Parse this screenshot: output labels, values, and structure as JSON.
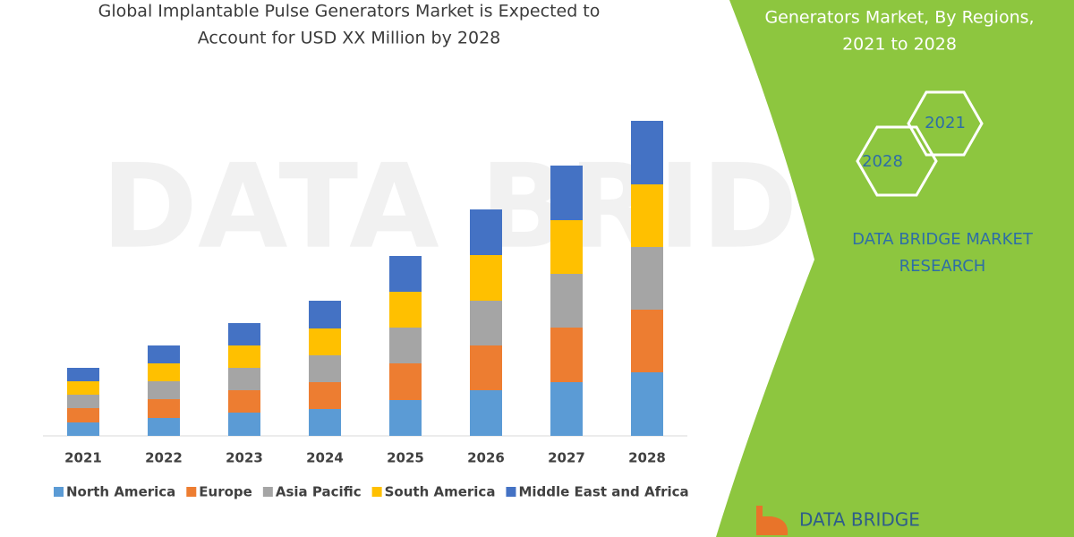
{
  "chart_data": {
    "type": "stacked-bar",
    "title": [
      "Global Implantable Pulse Generators Market is Expected to",
      "Account for USD XX Million by 2028"
    ],
    "categories": [
      "2021",
      "2022",
      "2023",
      "2024",
      "2025",
      "2026",
      "2027",
      "2028"
    ],
    "series": [
      {
        "name": "North America",
        "color": "#5b9bd5",
        "values": [
          15,
          20,
          26,
          30,
          40,
          51,
          60,
          71
        ]
      },
      {
        "name": "Europe",
        "color": "#ed7d31",
        "values": [
          16,
          21,
          25,
          30,
          41,
          50,
          61,
          70
        ]
      },
      {
        "name": "Asia Pacific",
        "color": "#a5a5a5",
        "values": [
          15,
          20,
          25,
          30,
          40,
          50,
          60,
          70
        ]
      },
      {
        "name": "South America",
        "color": "#ffc000",
        "values": [
          15,
          20,
          25,
          30,
          40,
          51,
          60,
          70
        ]
      },
      {
        "name": "Middle East and Africa",
        "color": "#4472c4",
        "values": [
          15,
          20,
          25,
          31,
          40,
          51,
          61,
          71
        ]
      }
    ]
  },
  "side_panel": {
    "title": [
      "Generators Market, By Regions,",
      "2021 to 2028"
    ],
    "hexagons": [
      "2028",
      "2021"
    ],
    "brand": [
      "DATA BRIDGE MARKET",
      "RESEARCH"
    ],
    "logo": "DATA BRIDGE"
  },
  "watermark": "DATA BRIDGE"
}
